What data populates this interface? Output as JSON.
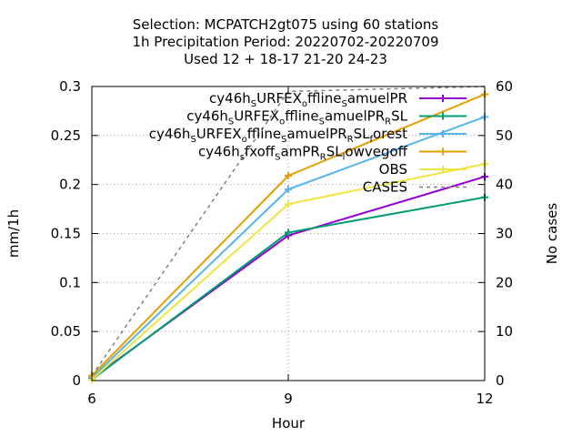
{
  "chart_data": {
    "type": "line",
    "title_lines": [
      "Selection: MCPATCH2gt075 using    60 stations",
      "1h Precipitation   Period: 20220702-20220709",
      "Used  12 + 18-17 21-20 24-23"
    ],
    "xlabel": "Hour",
    "ylabel": "mm/1h",
    "y2label": "No cases",
    "x": [
      6,
      9,
      12
    ],
    "xticks": [
      "6",
      "9",
      "12"
    ],
    "ylim": [
      0,
      0.3
    ],
    "yticks": [
      "0",
      "0.05",
      "0.1",
      "0.15",
      "0.2",
      "0.25",
      "0.3"
    ],
    "y2lim": [
      0,
      60
    ],
    "y2ticks": [
      "0",
      "10",
      "20",
      "30",
      "40",
      "50",
      "60"
    ],
    "grid": true,
    "legend_position": "top-right",
    "series": [
      {
        "name": "cy46h_S URFEX_o ffline_S amuelPR",
        "legend_parts": [
          [
            "cy46h",
            "n"
          ],
          [
            "S",
            "sub"
          ],
          [
            "URFEX",
            "n"
          ],
          [
            "o",
            "sub"
          ],
          [
            "ffline",
            "n"
          ],
          [
            "S",
            "sub"
          ],
          [
            "amuelPR",
            "n"
          ]
        ],
        "color": "#9400d3",
        "axis": "y1",
        "marker": "plus",
        "dash": "",
        "values": [
          0.002,
          0.148,
          0.208
        ]
      },
      {
        "name": "cy46h_S URFEX_o ffline_S amuelPR_R SL",
        "legend_parts": [
          [
            "cy46h",
            "n"
          ],
          [
            "S",
            "sub"
          ],
          [
            "URFEX",
            "n"
          ],
          [
            "o",
            "sub"
          ],
          [
            "ffline",
            "n"
          ],
          [
            "S",
            "sub"
          ],
          [
            "amuelPR",
            "n"
          ],
          [
            "R",
            "sub"
          ],
          [
            "SL",
            "n"
          ]
        ],
        "color": "#009e73",
        "axis": "y1",
        "marker": "plus",
        "dash": "",
        "values": [
          0.001,
          0.151,
          0.187
        ]
      },
      {
        "name": "cy46h_S URFEX_o ffline_S amuelPR_R SL_f orest",
        "legend_parts": [
          [
            "cy46h",
            "n"
          ],
          [
            "S",
            "sub"
          ],
          [
            "URFEX",
            "n"
          ],
          [
            "o",
            "sub"
          ],
          [
            "ffline",
            "n"
          ],
          [
            "S",
            "sub"
          ],
          [
            "amuelPR",
            "n"
          ],
          [
            "R",
            "sub"
          ],
          [
            "SL",
            "n"
          ],
          [
            "f",
            "sub"
          ],
          [
            "orest",
            "n"
          ]
        ],
        "color": "#56b4e9",
        "axis": "y1",
        "marker": "plus",
        "dash": "",
        "values": [
          0.003,
          0.195,
          0.269
        ]
      },
      {
        "name": "cy46h_s fxoff_S amPR_R SL_l owvegoff",
        "legend_parts": [
          [
            "cy46h",
            "n"
          ],
          [
            "s",
            "sub"
          ],
          [
            "fxoff",
            "n"
          ],
          [
            "S",
            "sub"
          ],
          [
            "amPR",
            "n"
          ],
          [
            "R",
            "sub"
          ],
          [
            "SL",
            "n"
          ],
          [
            "l",
            "sub"
          ],
          [
            "owvegoff",
            "n"
          ]
        ],
        "color": "#e69f00",
        "axis": "y1",
        "marker": "plus",
        "dash": "",
        "values": [
          0.005,
          0.209,
          0.292
        ]
      },
      {
        "name": "OBS",
        "legend_parts": [
          [
            "OBS",
            "n"
          ]
        ],
        "color": "#f0e442",
        "axis": "y1",
        "marker": "plus",
        "dash": "",
        "values": [
          0.001,
          0.18,
          0.221
        ]
      },
      {
        "name": "CASES",
        "legend_parts": [
          [
            "CASES",
            "n"
          ]
        ],
        "color": "#808080",
        "axis": "y2",
        "marker": "none",
        "dash": "4,4",
        "values": [
          1,
          59,
          60
        ]
      }
    ]
  }
}
